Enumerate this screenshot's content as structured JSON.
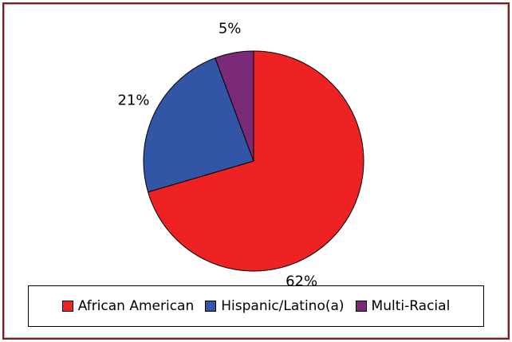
{
  "chart_data": {
    "type": "pie",
    "slices": [
      {
        "name": "African American",
        "value": 62,
        "label": "62%",
        "color": "#ee2222"
      },
      {
        "name": "Hispanic/Latino(a)",
        "value": 21,
        "label": "21%",
        "color": "#3355a6"
      },
      {
        "name": "Multi-Racial",
        "value": 5,
        "label": "5%",
        "color": "#7b2a78"
      }
    ],
    "legend_position": "bottom",
    "start_angle": "12 o'clock",
    "direction": "clockwise",
    "frame_color": "#7a1f1f"
  },
  "legend": {
    "items": [
      {
        "label": "African American",
        "color": "#ee2222"
      },
      {
        "label": "Hispanic/Latino(a)",
        "color": "#3355a6"
      },
      {
        "label": "Multi-Racial",
        "color": "#7b2a78"
      }
    ]
  }
}
